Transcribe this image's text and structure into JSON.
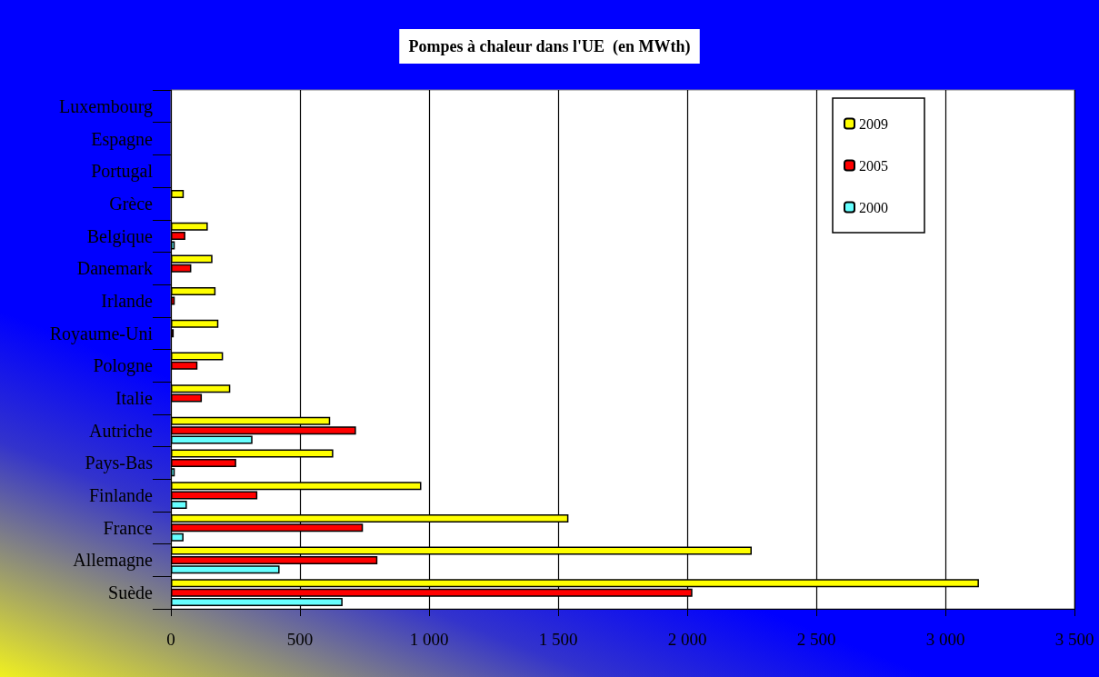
{
  "chart_data": {
    "type": "bar",
    "orientation": "horizontal",
    "title": "Pompes à chaleur dans l'UE  (en MWth)",
    "categories": [
      "Luxembourg",
      "Espagne",
      "Portugal",
      "Grèce",
      "Belgique",
      "Danemark",
      "Irlande",
      "Royaume-Uni",
      "Pologne",
      "Italie",
      "Autriche",
      "Pays-Bas",
      "Finlande",
      "France",
      "Allemagne",
      "Suède"
    ],
    "series": [
      {
        "name": "2009",
        "color": "#ffff00",
        "values": [
          null,
          null,
          null,
          50,
          143,
          161,
          173,
          184,
          202,
          230,
          617,
          629,
          970,
          1540,
          2250,
          3130
        ]
      },
      {
        "name": "2005",
        "color": "#ff0000",
        "values": [
          null,
          null,
          null,
          null,
          56,
          79,
          15,
          11,
          103,
          120,
          717,
          253,
          335,
          744,
          800,
          2020
        ]
      },
      {
        "name": "2000",
        "color": "#66ffff",
        "values": [
          null,
          null,
          null,
          null,
          15,
          null,
          null,
          null,
          null,
          null,
          316,
          15,
          62,
          49,
          421,
          665
        ]
      }
    ],
    "xlim": [
      0,
      3500
    ],
    "xticks": [
      {
        "value": 0,
        "label": "0"
      },
      {
        "value": 500,
        "label": "500"
      },
      {
        "value": 1000,
        "label": "1 000"
      },
      {
        "value": 1500,
        "label": "1 500"
      },
      {
        "value": 2000,
        "label": "2 000"
      },
      {
        "value": 2500,
        "label": "2 500"
      },
      {
        "value": 3000,
        "label": "3 000"
      },
      {
        "value": 3500,
        "label": "3 500"
      }
    ],
    "grid": "x",
    "legend": "top right"
  }
}
